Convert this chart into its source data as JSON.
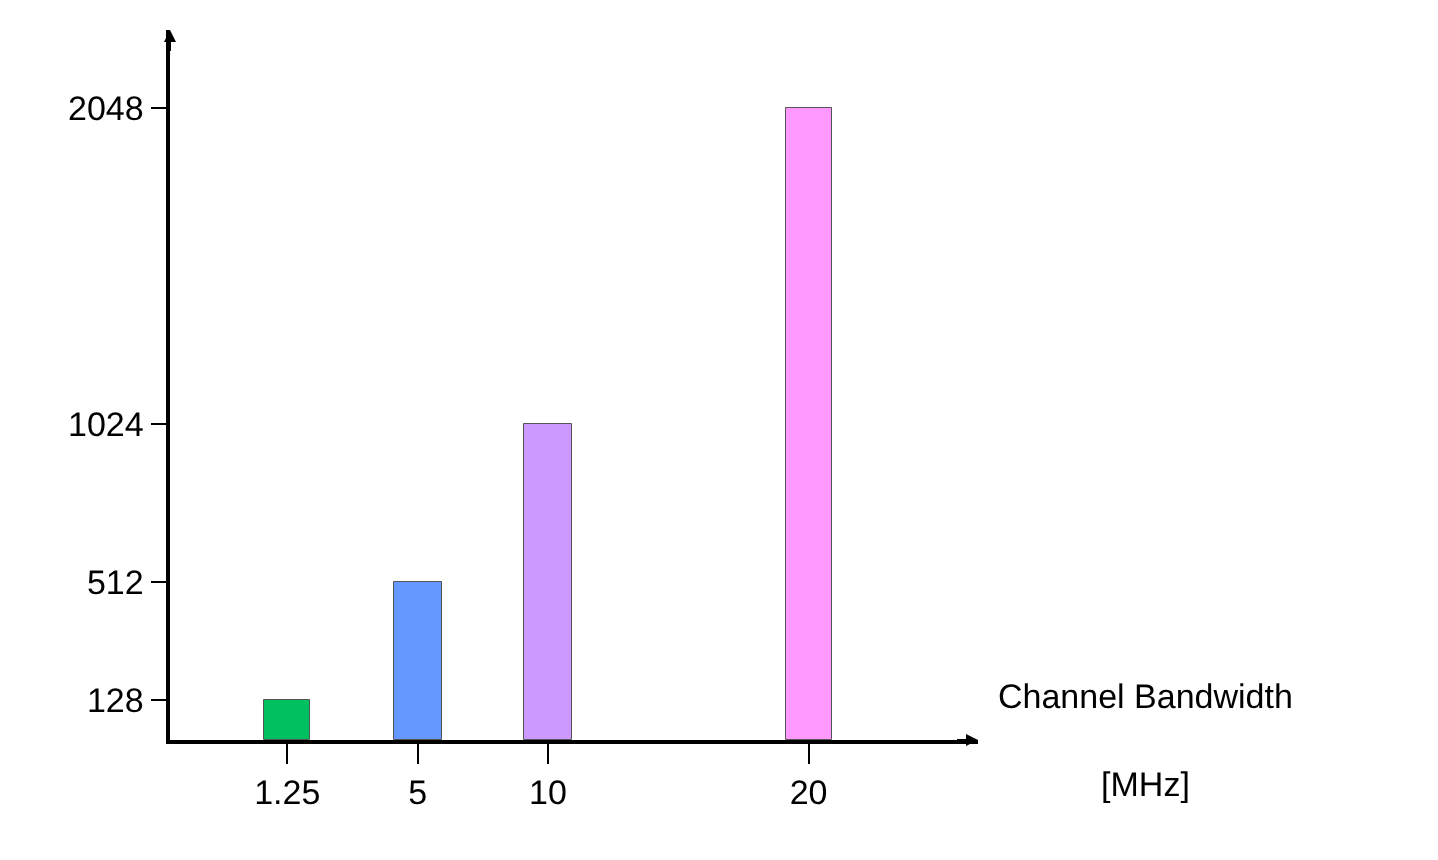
{
  "chart_data": {
    "type": "bar",
    "xlabel": "Channel Bandwidth\n[MHz]",
    "categories": [
      "1.25",
      "5",
      "10",
      null,
      "20"
    ],
    "values": [
      128,
      512,
      1024,
      null,
      2048
    ],
    "colors": [
      "#00c060",
      "#6699ff",
      "#cc99ff",
      "#cccccc",
      "#ff99ff"
    ],
    "ylim": [
      0,
      2300
    ],
    "yticks": [
      128,
      512,
      1024,
      2048
    ]
  }
}
